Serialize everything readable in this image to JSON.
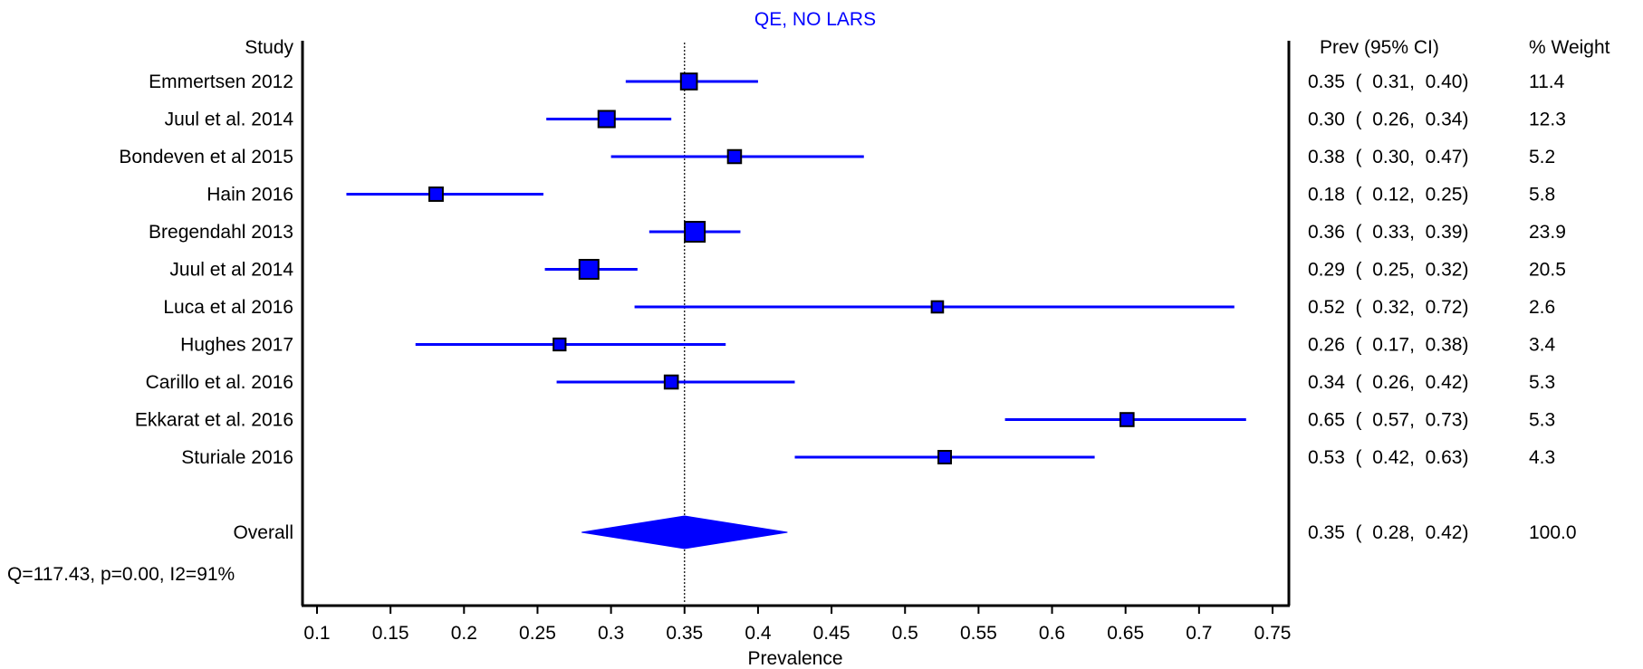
{
  "chart_data": {
    "type": "forest",
    "title": "QE, NO LARS",
    "xlabel": "Prevalence",
    "xlim": [
      0.1,
      0.75
    ],
    "xticks": [
      "0.1",
      "0.15",
      "0.2",
      "0.25",
      "0.3",
      "0.35",
      "0.4",
      "0.45",
      "0.5",
      "0.55",
      "0.6",
      "0.65",
      "0.7",
      "0.75"
    ],
    "xtick_values": [
      0.1,
      0.15,
      0.2,
      0.25,
      0.3,
      0.35,
      0.4,
      0.45,
      0.5,
      0.55,
      0.6,
      0.65,
      0.7,
      0.75
    ],
    "reference_line": 0.35,
    "headers": {
      "study": "Study",
      "estimate": "Prev (95% CI)",
      "weight": "% Weight"
    },
    "studies": [
      {
        "name": "Emmertsen 2012",
        "prev": 0.353,
        "lower": 0.31,
        "upper": 0.4,
        "ci_text": "0.35  (  0.31,  0.40)",
        "weight": 11.4,
        "weight_text": "11.4"
      },
      {
        "name": "Juul et al. 2014",
        "prev": 0.297,
        "lower": 0.256,
        "upper": 0.341,
        "ci_text": "0.30  (  0.26,  0.34)",
        "weight": 12.3,
        "weight_text": "12.3"
      },
      {
        "name": "Bondeven et al 2015",
        "prev": 0.384,
        "lower": 0.3,
        "upper": 0.472,
        "ci_text": "0.38  (  0.30,  0.47)",
        "weight": 5.2,
        "weight_text": "5.2"
      },
      {
        "name": "Hain 2016",
        "prev": 0.181,
        "lower": 0.12,
        "upper": 0.254,
        "ci_text": "0.18  (  0.12,  0.25)",
        "weight": 5.8,
        "weight_text": "5.8"
      },
      {
        "name": "Bregendahl 2013",
        "prev": 0.357,
        "lower": 0.326,
        "upper": 0.388,
        "ci_text": "0.36  (  0.33,  0.39)",
        "weight": 23.9,
        "weight_text": "23.9"
      },
      {
        "name": "Juul et al 2014",
        "prev": 0.285,
        "lower": 0.255,
        "upper": 0.318,
        "ci_text": "0.29  (  0.25,  0.32)",
        "weight": 20.5,
        "weight_text": "20.5"
      },
      {
        "name": "Luca et al 2016",
        "prev": 0.522,
        "lower": 0.316,
        "upper": 0.724,
        "ci_text": "0.52  (  0.32,  0.72)",
        "weight": 2.6,
        "weight_text": "2.6"
      },
      {
        "name": "Hughes 2017",
        "prev": 0.265,
        "lower": 0.167,
        "upper": 0.378,
        "ci_text": "0.26  (  0.17,  0.38)",
        "weight": 3.4,
        "weight_text": "3.4"
      },
      {
        "name": "Carillo et al. 2016",
        "prev": 0.341,
        "lower": 0.263,
        "upper": 0.425,
        "ci_text": "0.34  (  0.26,  0.42)",
        "weight": 5.3,
        "weight_text": "5.3"
      },
      {
        "name": "Ekkarat et al. 2016",
        "prev": 0.651,
        "lower": 0.568,
        "upper": 0.732,
        "ci_text": "0.65  (  0.57,  0.73)",
        "weight": 5.3,
        "weight_text": "5.3"
      },
      {
        "name": "Sturiale 2016",
        "prev": 0.527,
        "lower": 0.425,
        "upper": 0.629,
        "ci_text": "0.53  (  0.42,  0.63)",
        "weight": 4.3,
        "weight_text": "4.3"
      }
    ],
    "overall": {
      "name": "Overall",
      "prev": 0.35,
      "lower": 0.28,
      "upper": 0.42,
      "ci_text": "0.35  (  0.28,  0.42)",
      "weight_text": "100.0"
    },
    "heterogeneity": "Q=117.43, p=0.00, I2=91%",
    "colors": {
      "marker": "#0000ff",
      "marker_edge": "#000000",
      "title": "#0000ff",
      "axis": "#000000",
      "reference": "#000000"
    }
  }
}
